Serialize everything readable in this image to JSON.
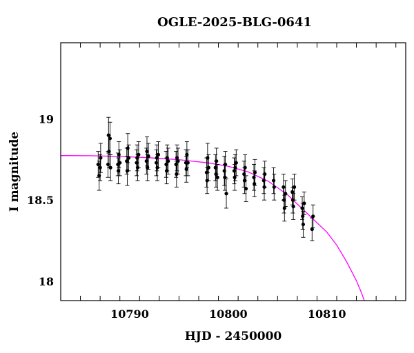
{
  "chart_data": {
    "type": "scatter",
    "title": "OGLE-2025-BLG-0641",
    "xlabel": "HJD - 2450000",
    "ylabel": "I magnitude",
    "xlim": [
      10783,
      10818
    ],
    "ylim": [
      19.47,
      17.88
    ],
    "y_inverted": true,
    "grid": false,
    "x_ticks": [
      10790,
      10800,
      10810
    ],
    "x_tick_labels": [
      "10790",
      "10800",
      "10810"
    ],
    "y_ticks": [
      18,
      18.5,
      19
    ],
    "y_tick_labels": [
      "18",
      "18.5",
      "19"
    ],
    "colors": {
      "data": "#000000",
      "model": "#ff00ff",
      "axes": "#000000"
    },
    "series": [
      {
        "kind": "observations",
        "points": [
          [
            10786.8,
            18.72,
            0.08
          ],
          [
            10786.9,
            18.65,
            0.09
          ],
          [
            10787.0,
            18.7,
            0.08
          ],
          [
            10787.05,
            18.76,
            0.09
          ],
          [
            10787.8,
            18.72,
            0.08
          ],
          [
            10787.85,
            18.9,
            0.11
          ],
          [
            10787.9,
            18.8,
            0.1
          ],
          [
            10788.0,
            18.88,
            0.1
          ],
          [
            10788.05,
            18.7,
            0.08
          ],
          [
            10788.8,
            18.72,
            0.07
          ],
          [
            10788.85,
            18.68,
            0.08
          ],
          [
            10788.9,
            18.78,
            0.08
          ],
          [
            10789.0,
            18.73,
            0.08
          ],
          [
            10789.7,
            18.74,
            0.08
          ],
          [
            10789.75,
            18.68,
            0.09
          ],
          [
            10789.8,
            18.82,
            0.09
          ],
          [
            10789.9,
            18.76,
            0.08
          ],
          [
            10790.7,
            18.73,
            0.08
          ],
          [
            10790.75,
            18.76,
            0.08
          ],
          [
            10790.8,
            18.7,
            0.08
          ],
          [
            10790.9,
            18.78,
            0.08
          ],
          [
            10791.7,
            18.74,
            0.08
          ],
          [
            10791.75,
            18.8,
            0.09
          ],
          [
            10791.8,
            18.7,
            0.08
          ],
          [
            10791.9,
            18.77,
            0.08
          ],
          [
            10792.7,
            18.73,
            0.08
          ],
          [
            10792.75,
            18.76,
            0.08
          ],
          [
            10792.8,
            18.7,
            0.08
          ],
          [
            10792.9,
            18.78,
            0.08
          ],
          [
            10793.7,
            18.72,
            0.08
          ],
          [
            10793.75,
            18.68,
            0.08
          ],
          [
            10793.8,
            18.76,
            0.08
          ],
          [
            10793.9,
            18.74,
            0.08
          ],
          [
            10794.7,
            18.72,
            0.08
          ],
          [
            10794.75,
            18.66,
            0.08
          ],
          [
            10794.8,
            18.76,
            0.08
          ],
          [
            10794.9,
            18.74,
            0.08
          ],
          [
            10795.7,
            18.73,
            0.08
          ],
          [
            10795.75,
            18.69,
            0.08
          ],
          [
            10795.8,
            18.78,
            0.08
          ],
          [
            10795.9,
            18.73,
            0.08
          ],
          [
            10797.8,
            18.67,
            0.09
          ],
          [
            10797.85,
            18.62,
            0.08
          ],
          [
            10797.9,
            18.76,
            0.09
          ],
          [
            10798.0,
            18.7,
            0.08
          ],
          [
            10798.7,
            18.7,
            0.08
          ],
          [
            10798.75,
            18.66,
            0.08
          ],
          [
            10798.8,
            18.74,
            0.08
          ],
          [
            10798.9,
            18.64,
            0.08
          ],
          [
            10799.6,
            18.68,
            0.09
          ],
          [
            10799.65,
            18.64,
            0.08
          ],
          [
            10799.7,
            18.72,
            0.08
          ],
          [
            10799.8,
            18.54,
            0.09
          ],
          [
            10800.6,
            18.68,
            0.08
          ],
          [
            10800.65,
            18.64,
            0.08
          ],
          [
            10800.7,
            18.7,
            0.08
          ],
          [
            10800.8,
            18.73,
            0.08
          ],
          [
            10801.6,
            18.66,
            0.08
          ],
          [
            10801.65,
            18.62,
            0.08
          ],
          [
            10801.7,
            18.7,
            0.08
          ],
          [
            10801.8,
            18.57,
            0.08
          ],
          [
            10802.6,
            18.64,
            0.08
          ],
          [
            10802.65,
            18.6,
            0.08
          ],
          [
            10802.7,
            18.67,
            0.08
          ],
          [
            10803.6,
            18.62,
            0.08
          ],
          [
            10803.65,
            18.58,
            0.08
          ],
          [
            10803.7,
            18.66,
            0.08
          ],
          [
            10804.6,
            18.62,
            0.08
          ],
          [
            10804.65,
            18.58,
            0.08
          ],
          [
            10805.6,
            18.58,
            0.08
          ],
          [
            10805.65,
            18.5,
            0.08
          ],
          [
            10805.7,
            18.45,
            0.08
          ],
          [
            10805.8,
            18.54,
            0.08
          ],
          [
            10806.5,
            18.55,
            0.08
          ],
          [
            10806.55,
            18.5,
            0.08
          ],
          [
            10806.6,
            18.46,
            0.08
          ],
          [
            10806.7,
            18.58,
            0.08
          ],
          [
            10807.5,
            18.45,
            0.07
          ],
          [
            10807.55,
            18.4,
            0.08
          ],
          [
            10807.6,
            18.35,
            0.08
          ],
          [
            10807.7,
            18.48,
            0.07
          ],
          [
            10808.5,
            18.32,
            0.07
          ],
          [
            10808.6,
            18.4,
            0.07
          ]
        ]
      },
      {
        "kind": "model",
        "points": [
          [
            10783,
            18.774
          ],
          [
            10786,
            18.773
          ],
          [
            10789,
            18.769
          ],
          [
            10792,
            18.761
          ],
          [
            10795,
            18.749
          ],
          [
            10798,
            18.729
          ],
          [
            10800,
            18.708
          ],
          [
            10802,
            18.674
          ],
          [
            10804,
            18.618
          ],
          [
            10806,
            18.533
          ],
          [
            10808,
            18.418
          ],
          [
            10810,
            18.302
          ],
          [
            10811,
            18.222
          ],
          [
            10812,
            18.12
          ],
          [
            10813,
            18.002
          ],
          [
            10813.5,
            17.93
          ],
          [
            10813.8,
            17.88
          ]
        ]
      }
    ]
  }
}
